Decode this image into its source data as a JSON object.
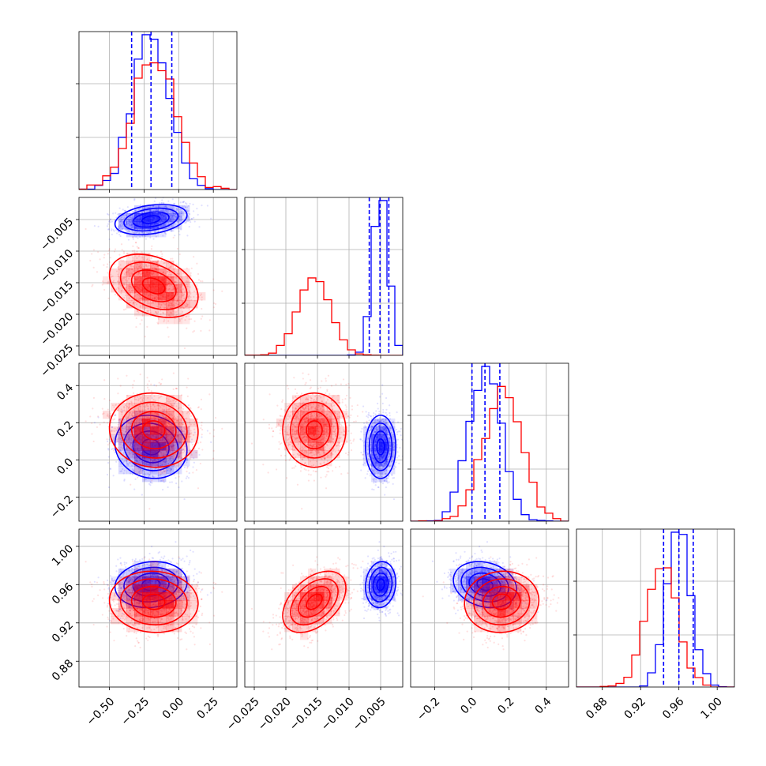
{
  "chart_data": {
    "type": "corner",
    "parameters": [
      {
        "range": [
          -0.72,
          0.42
        ],
        "ticks": [
          -0.5,
          -0.25,
          0.0,
          0.25
        ],
        "tick_labels": [
          "−0.50",
          "−0.25",
          "0.00",
          "0.25"
        ]
      },
      {
        "range": [
          -0.0265,
          -0.0015
        ],
        "ticks": [
          -0.025,
          -0.02,
          -0.015,
          -0.01,
          -0.005
        ],
        "tick_labels": [
          "−0.025",
          "−0.020",
          "−0.015",
          "−0.010",
          "−0.005"
        ]
      },
      {
        "range": [
          -0.33,
          0.52
        ],
        "ticks": [
          -0.2,
          0.0,
          0.2,
          0.4
        ],
        "tick_labels": [
          "−0.2",
          "0.0",
          "0.2",
          "0.4"
        ]
      },
      {
        "range": [
          0.853,
          1.018
        ],
        "ticks": [
          0.88,
          0.92,
          0.96,
          1.0
        ],
        "tick_labels": [
          "0.88",
          "0.92",
          "0.96",
          "1.00"
        ]
      }
    ],
    "series": [
      {
        "name": "",
        "color": "#0000ff",
        "mean": [
          -0.2,
          -0.005,
          0.07,
          0.96
        ],
        "sd": [
          0.13,
          0.0012,
          0.085,
          0.012
        ],
        "corr": [
          [
            1,
            0.3,
            -0.1,
            0.1
          ],
          [
            0.3,
            1,
            0,
            0.1
          ],
          [
            -0.1,
            0,
            1,
            -0.2
          ],
          [
            0.1,
            0.1,
            -0.2,
            1
          ]
        ],
        "quantiles": [
          [
            -0.34,
            -0.2,
            -0.05
          ],
          [
            -0.0068,
            -0.0051,
            -0.0037
          ],
          [
            0.0,
            0.07,
            0.15
          ],
          [
            0.944,
            0.96,
            0.975
          ]
        ]
      },
      {
        "name": "",
        "color": "#ff0000",
        "mean": [
          -0.18,
          -0.0155,
          0.16,
          0.942
        ],
        "sd": [
          0.16,
          0.0025,
          0.1,
          0.016
        ],
        "corr": [
          [
            1,
            -0.35,
            -0.05,
            -0.05
          ],
          [
            -0.35,
            1,
            0,
            0.45
          ],
          [
            -0.05,
            0,
            1,
            0.05
          ],
          [
            -0.05,
            0.45,
            0.05,
            1
          ]
        ]
      }
    ],
    "histogram_bins": 20,
    "contour_levels": [
      0.5,
      1.0,
      1.5,
      2.0
    ],
    "grid": true
  }
}
